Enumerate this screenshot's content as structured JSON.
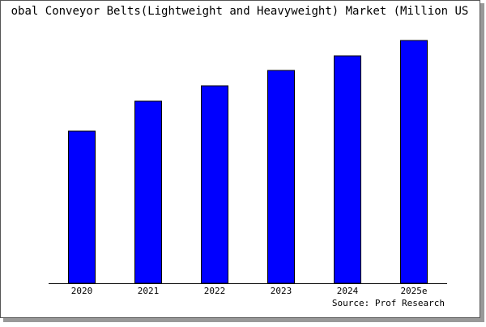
{
  "chart_data": {
    "type": "bar",
    "title": "obal Conveyor Belts(Lightweight and Heavyweight) Market (Million US",
    "source": "Source: Prof Research",
    "categories": [
      "2020",
      "2021",
      "2022",
      "2023",
      "2024",
      "2025e"
    ],
    "values": [
      188,
      225,
      244,
      263,
      281,
      300
    ],
    "color": "#0000ff",
    "ylim": [
      0,
      300
    ]
  }
}
